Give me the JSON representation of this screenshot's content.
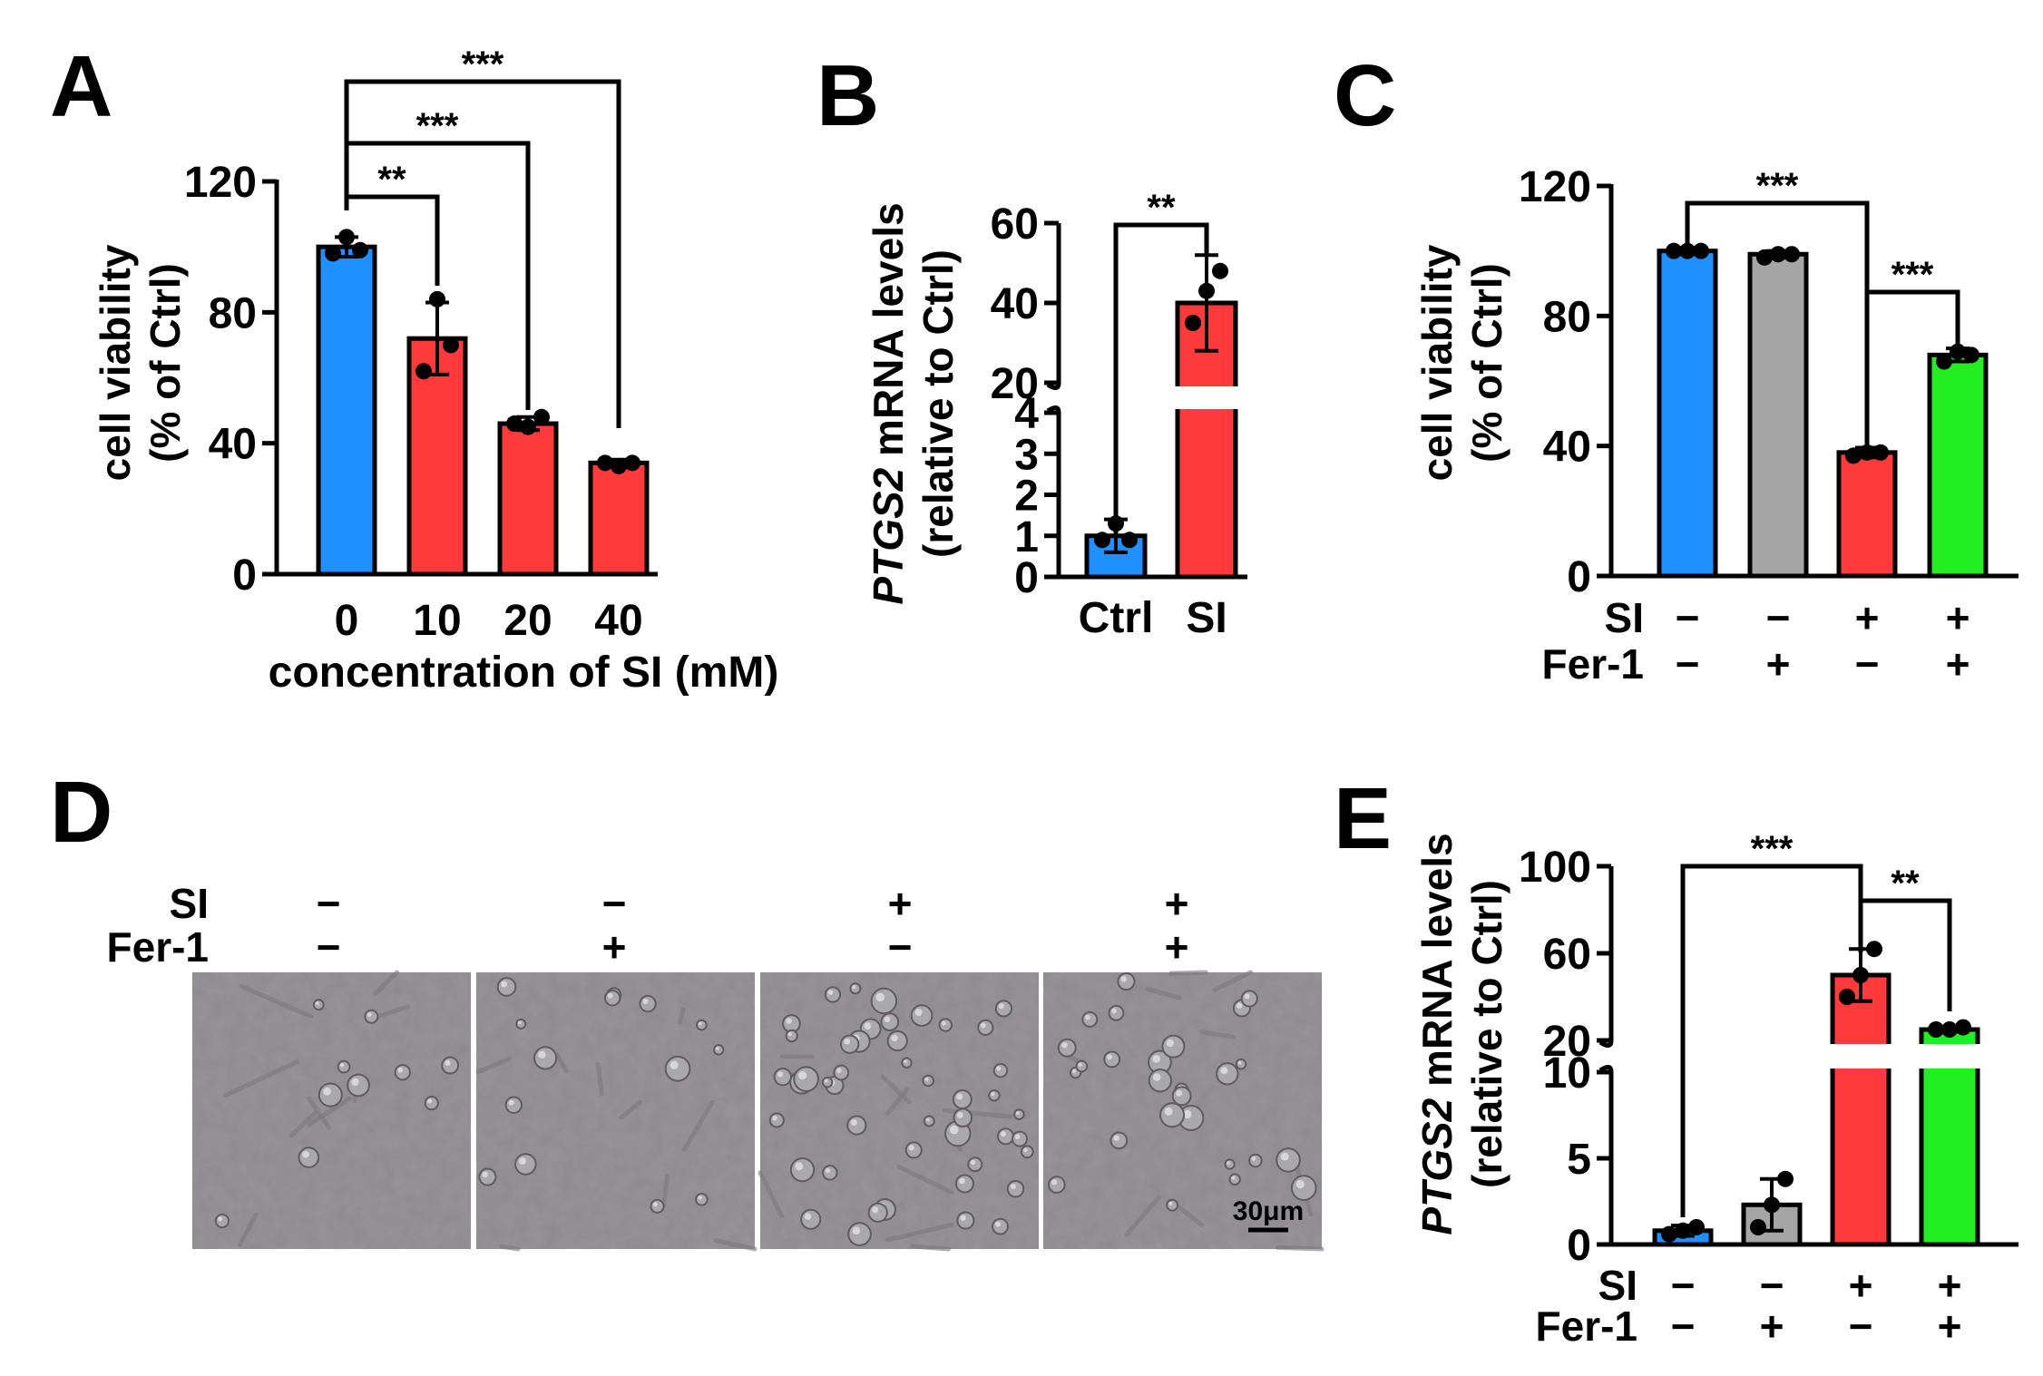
{
  "panel_labels": [
    "A",
    "B",
    "C",
    "D",
    "E"
  ],
  "colors": {
    "ctrl": "#1e90ff",
    "si": "#ff3a3a",
    "fer1": "#a5a5a5",
    "si_fer1": "#22ee22",
    "black": "#000000"
  },
  "chart_data": [
    {
      "panel": "A",
      "type": "bar",
      "categories": [
        "0",
        "10",
        "20",
        "40"
      ],
      "values": [
        100,
        72,
        46,
        34
      ],
      "errors": [
        3,
        11,
        2,
        1
      ],
      "points": [
        [
          98,
          103,
          99
        ],
        [
          62,
          84,
          70
        ],
        [
          46,
          45,
          48
        ],
        [
          34,
          33,
          34
        ]
      ],
      "colors": [
        "#1e90ff",
        "#ff3a3a",
        "#ff3a3a",
        "#ff3a3a"
      ],
      "ylim": [
        0,
        120
      ],
      "yticks": [
        "0",
        "40",
        "80",
        "120"
      ],
      "ylabel_lines": [
        "cell viability",
        "(% of Ctrl)"
      ],
      "xlabel": "concentration of SI (mM)",
      "significance": [
        {
          "from": 0,
          "to": 1,
          "label": "**"
        },
        {
          "from": 0,
          "to": 2,
          "label": "***"
        },
        {
          "from": 0,
          "to": 3,
          "label": "***"
        }
      ]
    },
    {
      "panel": "B",
      "type": "bar",
      "axis_break": true,
      "categories": [
        "Ctrl",
        "SI"
      ],
      "values": [
        1,
        40
      ],
      "errors": [
        0.4,
        12
      ],
      "points": [
        [
          0.9,
          1.3,
          0.9
        ],
        [
          35,
          43,
          48
        ]
      ],
      "colors": [
        "#1e90ff",
        "#ff3a3a"
      ],
      "lower_ylim": [
        0,
        4
      ],
      "lower_yticks": [
        "0",
        "1",
        "2",
        "3",
        "4"
      ],
      "upper_ylim": [
        20,
        60
      ],
      "upper_yticks": [
        "20",
        "40",
        "60"
      ],
      "ylabel_italic": "PTGS2",
      "ylabel_rest": " mRNA levels",
      "ylabel_line2": "(relative to Ctrl)",
      "significance": [
        {
          "from": 0,
          "to": 1,
          "label": "**"
        }
      ]
    },
    {
      "panel": "C",
      "type": "bar",
      "categories": [
        "Ctrl",
        "Fer-1",
        "SI",
        "SI+Fer-1"
      ],
      "values": [
        100,
        99,
        38,
        68
      ],
      "errors": [
        1,
        1,
        1.5,
        2
      ],
      "points": [
        [
          100,
          100,
          100
        ],
        [
          98,
          99,
          99
        ],
        [
          37,
          38,
          38
        ],
        [
          66,
          69,
          68
        ]
      ],
      "colors": [
        "#1e90ff",
        "#a5a5a5",
        "#ff3a3a",
        "#22ee22"
      ],
      "ylim": [
        0,
        120
      ],
      "yticks": [
        "0",
        "40",
        "80",
        "120"
      ],
      "ylabel_lines": [
        "cell viability",
        "(% of Ctrl)"
      ],
      "row_labels": [
        "SI",
        "Fer-1"
      ],
      "row1": [
        "−",
        "−",
        "+",
        "+"
      ],
      "row2": [
        "−",
        "+",
        "−",
        "+"
      ],
      "significance": [
        {
          "from": 0,
          "to": 2,
          "label": "***"
        },
        {
          "from": 2,
          "to": 3,
          "label": "***"
        }
      ]
    },
    {
      "panel": "E",
      "type": "bar",
      "axis_break": true,
      "categories": [
        "Ctrl",
        "Fer-1",
        "SI",
        "SI+Fer-1"
      ],
      "values": [
        0.8,
        2.3,
        50,
        25
      ],
      "errors": [
        0.3,
        1.5,
        12,
        1
      ],
      "points": [
        [
          0.6,
          0.8,
          1.0
        ],
        [
          1.0,
          2.3,
          3.8
        ],
        [
          40,
          50,
          62
        ],
        [
          25,
          25,
          26
        ]
      ],
      "colors": [
        "#1e90ff",
        "#a5a5a5",
        "#ff3a3a",
        "#22ee22"
      ],
      "lower_ylim": [
        0,
        10
      ],
      "lower_yticks": [
        "0",
        "5",
        "10"
      ],
      "upper_ylim": [
        20,
        100
      ],
      "upper_yticks": [
        "20",
        "60",
        "100"
      ],
      "ylabel_italic": "PTGS2",
      "ylabel_rest": " mRNA levels",
      "ylabel_line2": "(relative to Ctrl)",
      "row_labels": [
        "SI",
        "Fer-1"
      ],
      "row1": [
        "−",
        "−",
        "+",
        "+"
      ],
      "row2": [
        "−",
        "+",
        "−",
        "+"
      ],
      "significance": [
        {
          "from": 0,
          "to": 2,
          "label": "***"
        },
        {
          "from": 2,
          "to": 3,
          "label": "**"
        }
      ]
    }
  ],
  "micrographs": {
    "row_labels": [
      "SI",
      "Fer-1"
    ],
    "row1": [
      "−",
      "−",
      "+",
      "+"
    ],
    "row2": [
      "−",
      "+",
      "−",
      "+"
    ],
    "cell_counts": [
      10,
      14,
      46,
      26
    ],
    "scale_bar": "30μm"
  }
}
